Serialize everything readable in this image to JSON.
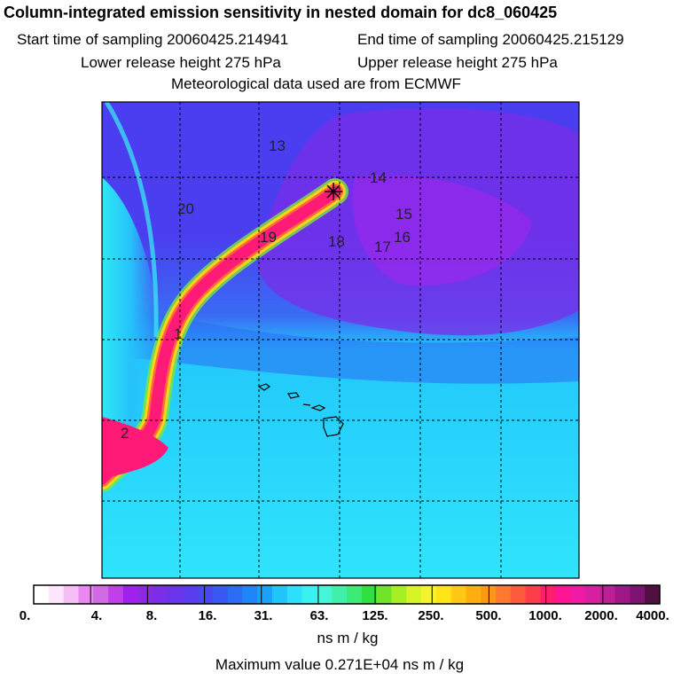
{
  "header": {
    "title": "Column-integrated emission sensitivity in nested domain for dc8_060425",
    "start_time": "Start time of sampling 20060425.214941",
    "end_time": "End time of sampling 20060425.215129",
    "lower_release": "Lower release height  275 hPa",
    "upper_release": "Upper release height  275 hPa",
    "met_source": "Meteorological data used are from ECMWF"
  },
  "map": {
    "trajectory_labels": [
      "13",
      "14",
      "20",
      "15",
      "19",
      "16",
      "18",
      "17",
      "1",
      "2"
    ],
    "release_marker": "release-point"
  },
  "colorbar": {
    "tick_labels": [
      "0.",
      "4.",
      "8.",
      "16.",
      "31.",
      "63.",
      "125.",
      "250.",
      "500.",
      "1000.",
      "2000.",
      "4000."
    ],
    "units": "ns m / kg",
    "max_value": "Maximum value  0.271E+04 ns m / kg",
    "colors": [
      "#ffffff",
      "#ffe6ff",
      "#f5bff5",
      "#e888f0",
      "#d26ae6",
      "#c13ee8",
      "#a020f0",
      "#8a2be2",
      "#7a2ee8",
      "#6a35ea",
      "#5a3cee",
      "#4848f0",
      "#3a58f2",
      "#2c6cf4",
      "#1e86f8",
      "#1aa2fa",
      "#22c4fc",
      "#2ee0ff",
      "#38f2f2",
      "#46f6d8",
      "#40f0a8",
      "#3cea78",
      "#30e040",
      "#70e428",
      "#a8ee24",
      "#d6f428",
      "#f4f42c",
      "#ffe418",
      "#ffc814",
      "#ffae10",
      "#ff9618",
      "#ff7a30",
      "#ff5a3c",
      "#ff3c4c",
      "#ff1e6e",
      "#ff1496",
      "#f01aa4",
      "#d620a0",
      "#bc2094",
      "#a01888",
      "#7e1472",
      "#501040"
    ]
  }
}
